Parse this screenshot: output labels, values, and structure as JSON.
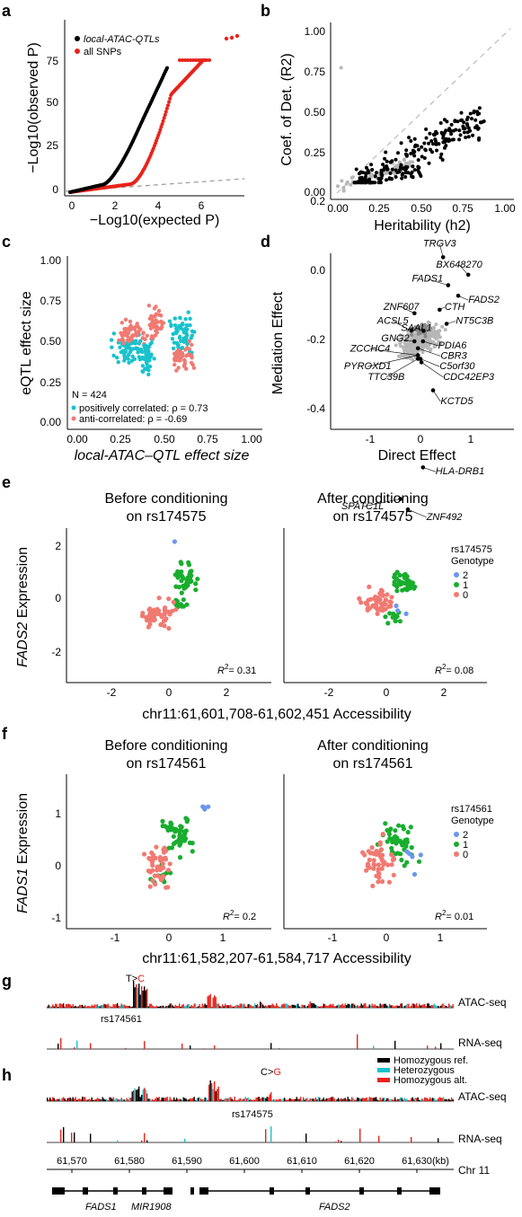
{
  "panels": {
    "a": {
      "label": "a",
      "legend": [
        "local-ATAC-QTLs",
        "all SNPs"
      ],
      "ylabel": "−Log10(observed P)",
      "xlabel": "−Log10(expected P)",
      "xticks": [
        "0",
        "2",
        "4",
        "6"
      ],
      "yticks": [
        "0",
        "25",
        "50",
        "75"
      ]
    },
    "b": {
      "label": "b",
      "ylabel": "Coef. of Det. (R2)",
      "xlabel": "Heritability (h2)",
      "xticks": [
        "0.00",
        "0.25",
        "0.50",
        "0.75",
        "1.00"
      ],
      "yticks": [
        "0.00",
        "0.25",
        "0.50",
        "0.75",
        "1.00"
      ]
    },
    "c": {
      "label": "c",
      "ylabel": "eQTL effect size",
      "xlabel": "local-ATAC–QTL effect size",
      "xticks": [
        "0.00",
        "0.25",
        "0.50",
        "0.75",
        "1.00"
      ],
      "yticks": [
        "0.00",
        "0.25",
        "0.50",
        "0.75",
        "1.00"
      ],
      "n_text": "N = 424",
      "legend": [
        "positively correlated: ρ = 0.73",
        "anti-correlated: ρ = -0.69"
      ]
    },
    "d": {
      "label": "d",
      "ylabel": "Mediation Effect",
      "xlabel": "Direct Effect",
      "xticks": [
        "-1",
        "0",
        "1"
      ],
      "yticks": [
        "-0.4",
        "-0.2",
        "0.0",
        "0.2"
      ],
      "genes": [
        "TRGV3",
        "BX648270",
        "FADS1",
        "FADS2",
        "CTH",
        "ZNF607",
        "NT5C3B",
        "ACSL5",
        "SAAL1",
        "GNG2",
        "PDIA6",
        "ZCCHC4",
        "CBR3",
        "PYROXD1",
        "C5orf30",
        "TTC39B",
        "CDC42EP3",
        "KCTD5",
        "HLA-DRB1",
        "SPATC1L",
        "ZNF492"
      ]
    },
    "e": {
      "label": "e",
      "title_left": [
        "Before conditioning",
        "on rs174575"
      ],
      "title_right": [
        "After conditioning",
        "on rs174575"
      ],
      "ylabel": "FADS2 Expression",
      "xlabel": "chr11:61,601,708-61,602,451 Accessibility",
      "xticks": [
        "-2",
        "0",
        "2"
      ],
      "yticks": [
        "-2",
        "0",
        "2"
      ],
      "r2_left": "= 0.31",
      "r2_right": "= 0.08",
      "legend_title": [
        "rs174575",
        "Genotype"
      ],
      "legend": [
        "2",
        "1",
        "0"
      ]
    },
    "f": {
      "label": "f",
      "title_left": [
        "Before conditioning",
        "on rs174561"
      ],
      "title_right": [
        "After conditioning",
        "on rs174561"
      ],
      "ylabel": "FADS1 Expression",
      "xlabel": "chr11:61,582,207-61,584,717 Accessibility",
      "xticks": [
        "-1",
        "0",
        "1"
      ],
      "yticks": [
        "-1",
        "0",
        "1"
      ],
      "r2_left": "= 0.2",
      "r2_right": "= 0.01",
      "legend_title": [
        "rs174561",
        "Genotype"
      ],
      "legend": [
        "2",
        "1",
        "0"
      ]
    },
    "g": {
      "label": "g",
      "allele_ref": "T>",
      "allele_alt": "C",
      "snp": "rs174561",
      "tracks": [
        "ATAC-seq",
        "RNA-seq"
      ]
    },
    "h": {
      "label": "h",
      "allele_ref": "C>",
      "allele_alt": "G",
      "snp": "rs174575",
      "tracks": [
        "ATAC-seq",
        "RNA-seq"
      ],
      "legend": [
        "Homozygous ref.",
        "Heterozygous",
        "Homozygous alt."
      ],
      "coords": [
        "61,570",
        "61,580",
        "61,590",
        "61,600",
        "61,610",
        "61,620",
        "61,630"
      ],
      "coord_unit": "(kb)",
      "chrom": "Chr 11",
      "genes": [
        "FADS1",
        "MIR1908",
        "FADS2"
      ]
    }
  },
  "colors": {
    "black": "#000000",
    "red": "#e8231b",
    "salmon": "#f07a72",
    "cyan": "#19c2cc",
    "green": "#19ad2e",
    "blue": "#6b95f0",
    "grey": "#b7b7b7"
  }
}
